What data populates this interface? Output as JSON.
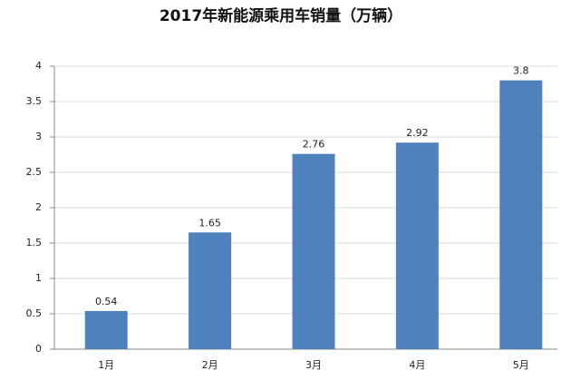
{
  "chart_data": {
    "type": "bar",
    "title": "2017年新能源乘用车销量（万辆）",
    "categories": [
      "1月",
      "2月",
      "3月",
      "4月",
      "5月"
    ],
    "values": [
      0.54,
      1.65,
      2.76,
      2.92,
      3.8
    ],
    "color": "#4f81bd",
    "ylim": [
      0,
      4
    ],
    "yticks": [
      0,
      0.5,
      1,
      1.5,
      2,
      2.5,
      3,
      3.5,
      4
    ],
    "grid": true
  }
}
